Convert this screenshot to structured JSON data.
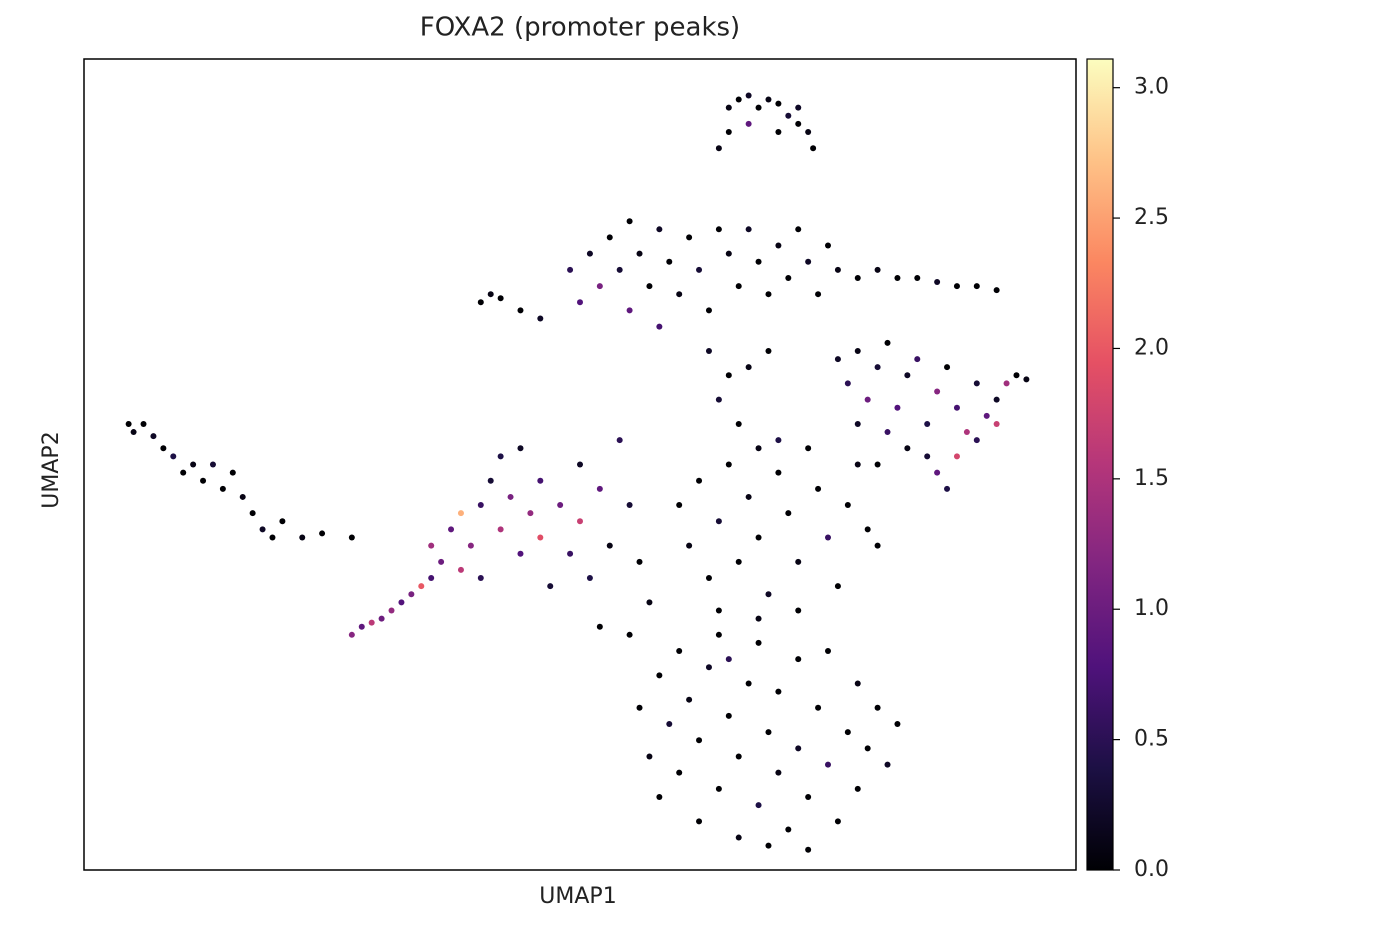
{
  "chart_data": {
    "type": "scatter",
    "title": "FOXA2 (promoter peaks)",
    "xlabel": "UMAP1",
    "ylabel": "UMAP2",
    "xlim": [
      0,
      100
    ],
    "ylim": [
      0,
      100
    ],
    "x": [
      65,
      66,
      67,
      68,
      69,
      70,
      71,
      72,
      73,
      73.5,
      67,
      65,
      64,
      70,
      72,
      4.5,
      5,
      6,
      7,
      8,
      9,
      10,
      11,
      12,
      13,
      14,
      15,
      16,
      17,
      18,
      19,
      20,
      22,
      24,
      27,
      40,
      41,
      42,
      44,
      46,
      49,
      50,
      51,
      52,
      53,
      54,
      55,
      55,
      56,
      57,
      58,
      58,
      59,
      60,
      61,
      62,
      63,
      64,
      65,
      66,
      67,
      68,
      69,
      70,
      71,
      72,
      73,
      74,
      75,
      76,
      78,
      80,
      82,
      84,
      86,
      88,
      90,
      92,
      63,
      65,
      67,
      69,
      64,
      66,
      68,
      76,
      77,
      78,
      79,
      80,
      81,
      82,
      83,
      84,
      85,
      86,
      87,
      88,
      89,
      90,
      91,
      92,
      93,
      94,
      95,
      85,
      86,
      87,
      83,
      81,
      78,
      88,
      90,
      92,
      80,
      27,
      28,
      29,
      30,
      31,
      32,
      33,
      34,
      35,
      35,
      36,
      37,
      38,
      38,
      39,
      40,
      40,
      41,
      42,
      42,
      43,
      44,
      44,
      45,
      46,
      46,
      47,
      48,
      49,
      50,
      50,
      51,
      52,
      53,
      54,
      55,
      56,
      57,
      52,
      55,
      60,
      61,
      62,
      63,
      64,
      65,
      66,
      67,
      68,
      69,
      70,
      71,
      72,
      73,
      74,
      75,
      76,
      77,
      78,
      79,
      80,
      72,
      68,
      70,
      64,
      56,
      57,
      58,
      58,
      59,
      60,
      60,
      61,
      62,
      62,
      63,
      64,
      64,
      65,
      66,
      66,
      67,
      68,
      68,
      69,
      70,
      70,
      71,
      72,
      72,
      73,
      74,
      75,
      75,
      76,
      77,
      78,
      78,
      79,
      80,
      81,
      82,
      73,
      69,
      65
    ],
    "y": [
      94,
      95,
      95.5,
      94,
      95,
      94.5,
      93,
      92,
      91,
      89,
      92,
      91,
      89,
      91,
      94,
      55,
      54,
      55,
      53.5,
      52,
      51,
      49,
      50,
      48,
      50,
      47,
      49,
      46,
      44,
      42,
      41,
      43,
      41,
      41.5,
      41,
      70,
      71,
      70.5,
      69,
      68,
      74,
      70,
      76,
      72,
      78,
      74,
      80,
      69,
      76,
      72,
      79,
      67,
      75,
      71,
      78,
      74,
      69,
      79,
      76,
      72,
      79,
      75,
      71,
      77,
      73,
      79,
      75,
      71,
      77,
      74,
      73,
      74,
      73,
      73,
      72.5,
      72,
      72,
      71.5,
      64,
      61,
      62,
      64,
      58,
      55,
      52,
      63,
      60,
      64,
      58,
      62,
      65,
      57,
      61,
      63,
      55,
      59,
      62,
      57,
      54,
      60,
      56,
      58,
      60,
      61,
      60.5,
      51,
      49,
      47,
      52,
      54,
      55,
      51,
      53,
      55,
      50,
      29,
      30,
      30.5,
      31,
      32,
      33,
      34,
      35,
      36,
      40,
      38,
      42,
      37,
      44,
      40,
      45,
      36,
      48,
      42,
      51,
      46,
      39,
      52,
      44,
      48,
      41,
      35,
      45,
      39,
      50,
      43,
      36,
      47,
      40,
      53,
      45,
      38,
      33,
      30,
      29,
      45,
      40,
      48,
      36,
      43,
      50,
      38,
      46,
      41,
      34,
      49,
      44,
      38,
      52,
      47,
      41,
      35,
      45,
      50,
      42,
      40,
      32,
      31,
      53,
      32,
      20,
      14,
      24,
      9,
      18,
      27,
      12,
      21,
      6,
      16,
      25,
      10,
      29,
      19,
      4,
      14,
      23,
      8,
      28,
      17,
      12,
      22,
      5,
      26,
      15,
      9,
      20,
      13,
      27,
      6,
      17,
      23,
      10,
      15,
      20,
      13,
      18,
      2.5,
      3,
      26
    ],
    "values": [
      0.1,
      0,
      0.2,
      0,
      0.1,
      0,
      0.3,
      0,
      0.1,
      0,
      0.9,
      0,
      0.1,
      0,
      0.2,
      0,
      0.1,
      0,
      0.2,
      0,
      0.4,
      0,
      0.1,
      0,
      0.3,
      0,
      0,
      0.1,
      0,
      0.2,
      0,
      0,
      0.1,
      0,
      0,
      0,
      0.1,
      0,
      0,
      0.2,
      0.5,
      0.8,
      0.2,
      1.1,
      0,
      0.3,
      0,
      0.9,
      0.1,
      0,
      0.2,
      0.7,
      0,
      0.1,
      0,
      0.3,
      0,
      0,
      0.1,
      0,
      0.2,
      0,
      0,
      0.1,
      0,
      0,
      0.2,
      0,
      0,
      0.1,
      0,
      0.1,
      0,
      0,
      0.2,
      0,
      0,
      0,
      0.2,
      0,
      0.1,
      0,
      0.3,
      0,
      0.1,
      0.2,
      0.5,
      0.1,
      1.0,
      0.3,
      0,
      0.8,
      0.2,
      0.6,
      0.4,
      1.2,
      0,
      0.7,
      1.5,
      0.3,
      0.9,
      0.2,
      1.4,
      0,
      0.1,
      0.3,
      0.9,
      0.4,
      0.1,
      0.6,
      0.2,
      1.8,
      0.5,
      1.7,
      0,
      1.2,
      0.9,
      1.6,
      1.0,
      1.3,
      0.8,
      1.1,
      2.0,
      0.7,
      1.4,
      1.0,
      0.9,
      1.6,
      2.6,
      1.2,
      0.6,
      0.5,
      0.3,
      1.5,
      0.4,
      1.1,
      0.8,
      0.2,
      1.3,
      0.7,
      1.9,
      0.3,
      1.0,
      0.6,
      0.2,
      1.7,
      0.4,
      0.9,
      0.1,
      0.5,
      0.3,
      0,
      0.1,
      0,
      0,
      0,
      0.1,
      0,
      0,
      0.3,
      0,
      0,
      0.1,
      0,
      0.2,
      0,
      0,
      0.1,
      0,
      0,
      0.6,
      0,
      0,
      0.1,
      0,
      0,
      0,
      0.1,
      0.4,
      0,
      0,
      0.1,
      0,
      0,
      0.3,
      0,
      0,
      0.1,
      0,
      0,
      0.2,
      0,
      0,
      0,
      0.1,
      0,
      0,
      0.4,
      0,
      0,
      0.1,
      0,
      0,
      0,
      0.2,
      0,
      0,
      0.6,
      0,
      0,
      0,
      0.1,
      0,
      0,
      0,
      0.2,
      0,
      0,
      0,
      0.5
    ],
    "colormap": "magma",
    "clim": [
      0,
      3.11
    ],
    "cticks": [
      {
        "value": 0,
        "label": "0.0"
      },
      0.5,
      {
        "value": 1,
        "label": "1.0"
      },
      1.5,
      {
        "value": 2,
        "label": "2.0"
      },
      2.5,
      {
        "value": 3,
        "label": "3.0"
      }
    ]
  }
}
